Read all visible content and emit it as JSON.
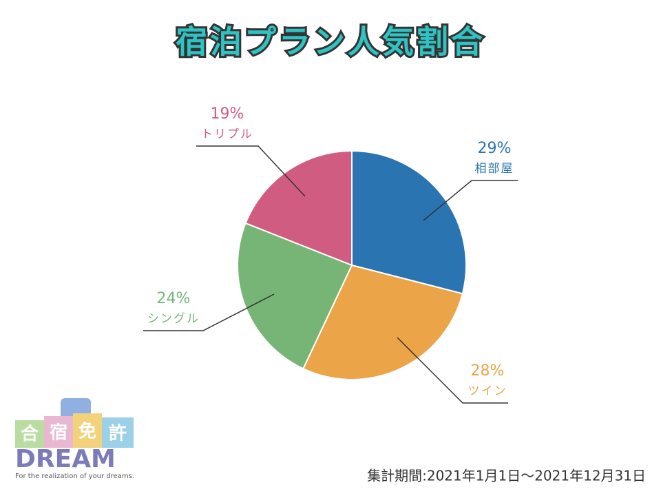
{
  "chart_data": {
    "type": "pie",
    "title": "宿泊プラン人気割合",
    "categories": [
      "相部屋",
      "ツイン",
      "シングル",
      "トリプル"
    ],
    "values": [
      29,
      28,
      24,
      19
    ],
    "value_labels": [
      "29%",
      "28%",
      "24%",
      "19%"
    ],
    "colors": [
      "#2a74b1",
      "#eca448",
      "#77b577",
      "#d05c82"
    ],
    "start_angle": 0,
    "direction": "clockwise",
    "footnote": "集計期間:2021年1月1日～2021年12月31日"
  },
  "logo": {
    "kanji": [
      "合",
      "宿",
      "免",
      "許"
    ],
    "name": "DREAM",
    "tagline": "For the realization of your dreams."
  }
}
